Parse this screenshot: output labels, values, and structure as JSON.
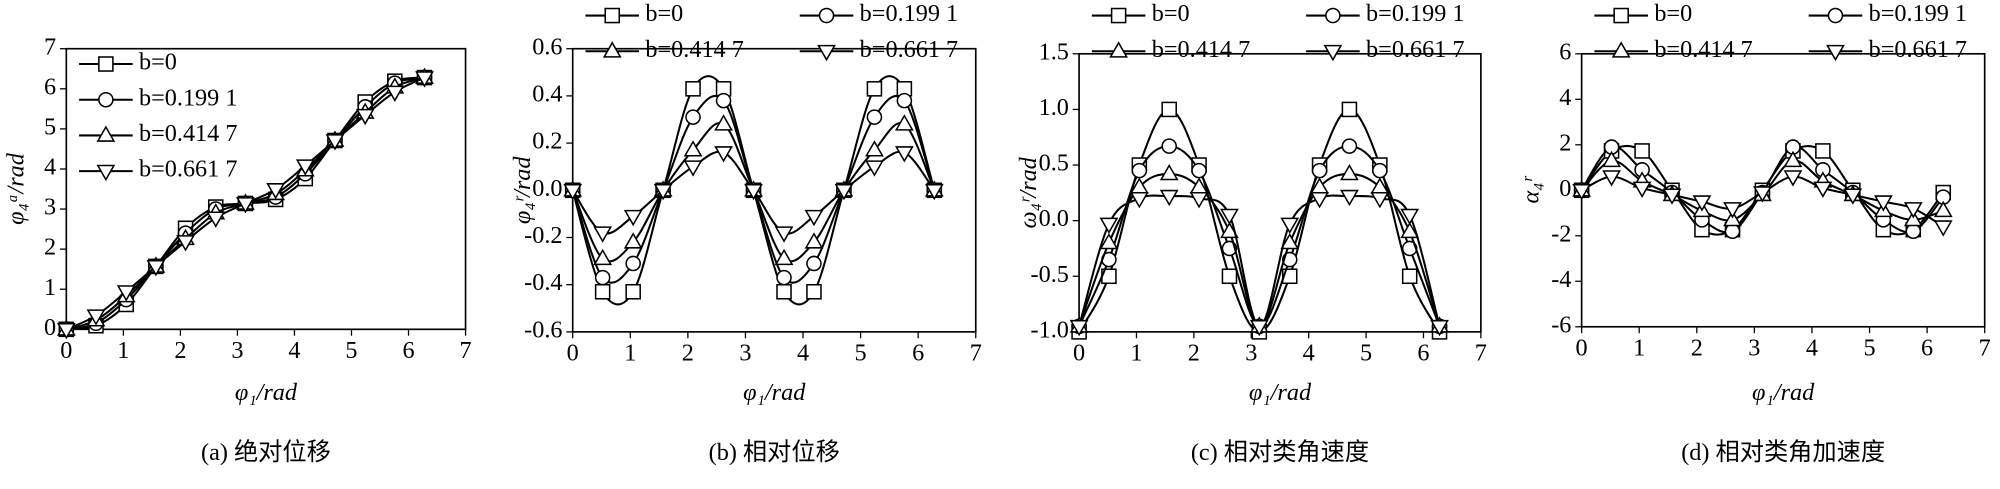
{
  "chart_data": [
    {
      "type": "line",
      "caption": "(a) 绝对位移",
      "xlabel": "φ₁/rad",
      "ylabel": "φ₄ᵃ/rad",
      "legend": "upper left",
      "x": [
        0,
        0.52,
        1.05,
        1.57,
        2.09,
        2.62,
        3.14,
        3.67,
        4.19,
        4.71,
        5.24,
        5.76,
        6.28
      ],
      "xlim": [
        0,
        7
      ],
      "xticks": [
        0,
        1,
        2,
        3,
        4,
        5,
        6,
        7
      ],
      "ylim": [
        0,
        7
      ],
      "yticks": [
        0,
        1,
        2,
        3,
        4,
        5,
        6,
        7
      ],
      "series": [
        {
          "name": "b=0",
          "color": "#000000",
          "marker": "square",
          "values": [
            0,
            0.09,
            0.62,
            1.57,
            2.52,
            3.05,
            3.14,
            3.24,
            3.76,
            4.71,
            5.67,
            6.19,
            6.28
          ]
        },
        {
          "name": "b=0.199 1",
          "color": "#000000",
          "marker": "circle",
          "values": [
            0,
            0.15,
            0.74,
            1.57,
            2.4,
            3.0,
            3.14,
            3.3,
            3.88,
            4.71,
            5.55,
            6.14,
            6.28
          ]
        },
        {
          "name": "b=0.414 7",
          "color": "#000000",
          "marker": "triangle-up",
          "values": [
            0,
            0.23,
            0.83,
            1.57,
            2.26,
            2.9,
            3.14,
            3.38,
            3.97,
            4.71,
            5.41,
            6.04,
            6.28
          ]
        },
        {
          "name": "b=0.661 7",
          "color": "#000000",
          "marker": "triangle-down",
          "values": [
            0,
            0.34,
            0.94,
            1.57,
            2.19,
            2.78,
            3.14,
            3.49,
            4.08,
            4.71,
            5.34,
            5.92,
            6.28
          ]
        }
      ]
    },
    {
      "type": "line",
      "caption": "(b) 相对位移",
      "xlabel": "φ₁/rad",
      "ylabel": "φ₄ʳ/rad",
      "legend": "top outside",
      "x": [
        0,
        0.52,
        1.05,
        1.57,
        2.09,
        2.62,
        3.14,
        3.67,
        4.19,
        4.71,
        5.24,
        5.76,
        6.28
      ],
      "xlim": [
        0,
        7
      ],
      "xticks": [
        0,
        1,
        2,
        3,
        4,
        5,
        6,
        7
      ],
      "ylim": [
        -0.6,
        0.6
      ],
      "yticks": [
        -0.6,
        -0.4,
        -0.2,
        {
          "value": 0,
          "label": "0.0"
        },
        0.2,
        0.4,
        0.6
      ],
      "series": [
        {
          "name": "b=0",
          "color": "#000000",
          "marker": "square",
          "values": [
            0,
            -0.43,
            -0.43,
            0,
            0.43,
            0.43,
            0,
            -0.43,
            -0.43,
            0,
            0.43,
            0.43,
            0
          ]
        },
        {
          "name": "b=0.199 1",
          "color": "#000000",
          "marker": "circle",
          "values": [
            0,
            -0.37,
            -0.31,
            0,
            0.31,
            0.38,
            0,
            -0.37,
            -0.31,
            0,
            0.31,
            0.38,
            0
          ]
        },
        {
          "name": "b=0.414 7",
          "color": "#000000",
          "marker": "triangle-up",
          "values": [
            0,
            -0.29,
            -0.22,
            0,
            0.17,
            0.28,
            0,
            -0.29,
            -0.22,
            0,
            0.17,
            0.28,
            0
          ]
        },
        {
          "name": "b=0.661 7",
          "color": "#000000",
          "marker": "triangle-down",
          "values": [
            0,
            -0.18,
            -0.11,
            0,
            0.1,
            0.16,
            0,
            -0.18,
            -0.11,
            0,
            0.1,
            0.16,
            0
          ]
        }
      ]
    },
    {
      "type": "line",
      "caption": "(c) 相对类角速度",
      "xlabel": "φ₁/rad",
      "ylabel": "ω₄ʳ/rad",
      "legend": "top outside",
      "x": [
        0,
        0.52,
        1.05,
        1.57,
        2.09,
        2.62,
        3.14,
        3.67,
        4.19,
        4.71,
        5.24,
        5.76,
        6.28
      ],
      "xlim": [
        0,
        7
      ],
      "xticks": [
        0,
        1,
        2,
        3,
        4,
        5,
        6,
        7
      ],
      "ylim": [
        -1,
        1.5
      ],
      "yticks": [
        {
          "value": -1,
          "label": "-1.0"
        },
        -0.5,
        {
          "value": 0,
          "label": "0.0"
        },
        0.5,
        {
          "value": 1,
          "label": "1.0"
        },
        1.5
      ],
      "series": [
        {
          "name": "b=0",
          "color": "#000000",
          "marker": "square",
          "values": [
            -1,
            -0.5,
            0.5,
            1,
            0.5,
            -0.5,
            -1,
            -0.5,
            0.5,
            1,
            0.5,
            -0.5,
            -1
          ]
        },
        {
          "name": "b=0.199 1",
          "color": "#000000",
          "marker": "circle",
          "values": [
            -0.95,
            -0.35,
            0.45,
            0.67,
            0.45,
            -0.25,
            -0.95,
            -0.35,
            0.45,
            0.67,
            0.45,
            -0.25,
            -0.95
          ]
        },
        {
          "name": "b=0.414 7",
          "color": "#000000",
          "marker": "triangle-up",
          "values": [
            -0.95,
            -0.2,
            0.3,
            0.42,
            0.3,
            -0.1,
            -0.95,
            -0.2,
            0.3,
            0.42,
            0.3,
            -0.1,
            -0.95
          ]
        },
        {
          "name": "b=0.661 7",
          "color": "#000000",
          "marker": "triangle-down",
          "values": [
            -0.95,
            -0.03,
            0.2,
            0.22,
            0.2,
            0.05,
            -0.95,
            -0.03,
            0.2,
            0.22,
            0.2,
            0.05,
            -0.95
          ]
        }
      ]
    },
    {
      "type": "line",
      "caption": "(d) 相对类角加速度",
      "xlabel": "φ₁/rad",
      "ylabel": "α₄ʳ",
      "legend": "top outside",
      "x": [
        0,
        0.52,
        1.05,
        1.57,
        2.09,
        2.62,
        3.14,
        3.67,
        4.19,
        4.71,
        5.24,
        5.76,
        6.28
      ],
      "xlim": [
        0,
        7
      ],
      "xticks": [
        0,
        1,
        2,
        3,
        4,
        5,
        6,
        7
      ],
      "ylim": [
        -6,
        6
      ],
      "yticks": [
        -6,
        -4,
        -2,
        0,
        2,
        4,
        6
      ],
      "series": [
        {
          "name": "b=0",
          "color": "#000000",
          "marker": "square",
          "values": [
            0,
            1.73,
            1.73,
            0,
            -1.73,
            -1.73,
            0,
            1.73,
            1.73,
            0,
            -1.73,
            -1.73,
            -0.1
          ]
        },
        {
          "name": "b=0.199 1",
          "color": "#000000",
          "marker": "circle",
          "values": [
            0,
            1.9,
            0.9,
            -0.1,
            -1.3,
            -1.8,
            -0.1,
            1.9,
            0.9,
            -0.1,
            -1.3,
            -1.8,
            -0.3
          ]
        },
        {
          "name": "b=0.414 7",
          "color": "#000000",
          "marker": "triangle-up",
          "values": [
            0,
            1.3,
            0.4,
            -0.2,
            -0.9,
            -1.3,
            -0.2,
            1.3,
            0.4,
            -0.2,
            -0.9,
            -1.3,
            -0.9
          ]
        },
        {
          "name": "b=0.661 7",
          "color": "#000000",
          "marker": "triangle-down",
          "values": [
            0,
            0.6,
            0.1,
            -0.2,
            -0.5,
            -0.8,
            -0.1,
            0.6,
            0.1,
            -0.2,
            -0.5,
            -0.8,
            -1.6
          ]
        }
      ]
    }
  ]
}
